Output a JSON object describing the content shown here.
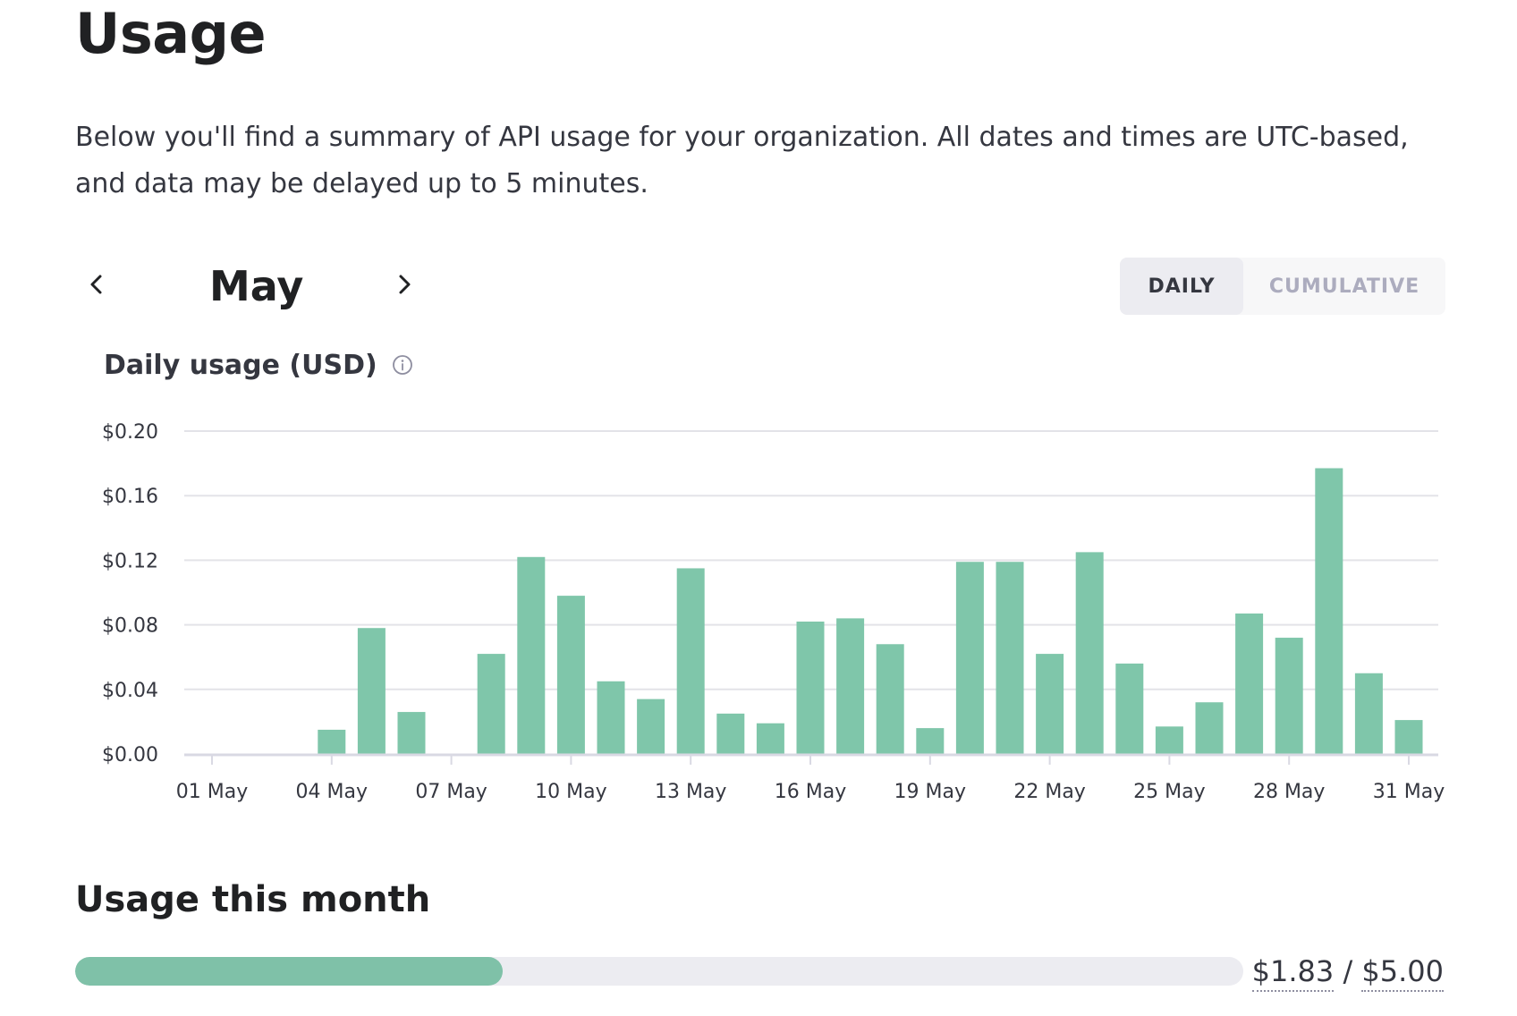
{
  "page": {
    "title": "Usage",
    "intro": "Below you'll find a summary of API usage for your organization. All dates and times are UTC-based, and data may be delayed up to 5 minutes."
  },
  "month_nav": {
    "label": "May",
    "prev_icon": "chevron-left-icon",
    "next_icon": "chevron-right-icon"
  },
  "view_toggle": {
    "daily_label": "DAILY",
    "cumulative_label": "CUMULATIVE",
    "selected": "DAILY"
  },
  "chart_header": {
    "title": "Daily usage (USD)",
    "icon": "info-icon"
  },
  "chart_data": {
    "type": "bar",
    "title": "Daily usage (USD)",
    "xlabel": "",
    "ylabel": "",
    "ylim": [
      0,
      0.2
    ],
    "yticks": [
      "$0.00",
      "$0.04",
      "$0.08",
      "$0.12",
      "$0.16",
      "$0.20"
    ],
    "ytick_values": [
      0,
      0.04,
      0.08,
      0.12,
      0.16,
      0.2
    ],
    "xtick_labels": [
      "01 May",
      "04 May",
      "07 May",
      "10 May",
      "13 May",
      "16 May",
      "19 May",
      "22 May",
      "25 May",
      "28 May",
      "31 May"
    ],
    "xtick_days": [
      1,
      4,
      7,
      10,
      13,
      16,
      19,
      22,
      25,
      28,
      31
    ],
    "grid": true,
    "bar_color": "#7fc6aa",
    "categories": [
      "01 May",
      "02 May",
      "03 May",
      "04 May",
      "05 May",
      "06 May",
      "07 May",
      "08 May",
      "09 May",
      "10 May",
      "11 May",
      "12 May",
      "13 May",
      "14 May",
      "15 May",
      "16 May",
      "17 May",
      "18 May",
      "19 May",
      "20 May",
      "21 May",
      "22 May",
      "23 May",
      "24 May",
      "25 May",
      "26 May",
      "27 May",
      "28 May",
      "29 May",
      "30 May",
      "31 May"
    ],
    "values": [
      0,
      0,
      0,
      0.015,
      0.078,
      0.026,
      0,
      0.062,
      0.122,
      0.098,
      0.045,
      0.034,
      0.115,
      0.025,
      0.019,
      0.082,
      0.084,
      0.068,
      0.016,
      0.119,
      0.119,
      0.062,
      0.125,
      0.056,
      0.017,
      0.032,
      0.087,
      0.072,
      0.177,
      0.05,
      0.021
    ]
  },
  "usage_month": {
    "heading": "Usage this month",
    "used": "$1.83",
    "separator": " / ",
    "limit": "$5.00",
    "fraction": 0.366,
    "fill_color": "#7fc1a8"
  }
}
